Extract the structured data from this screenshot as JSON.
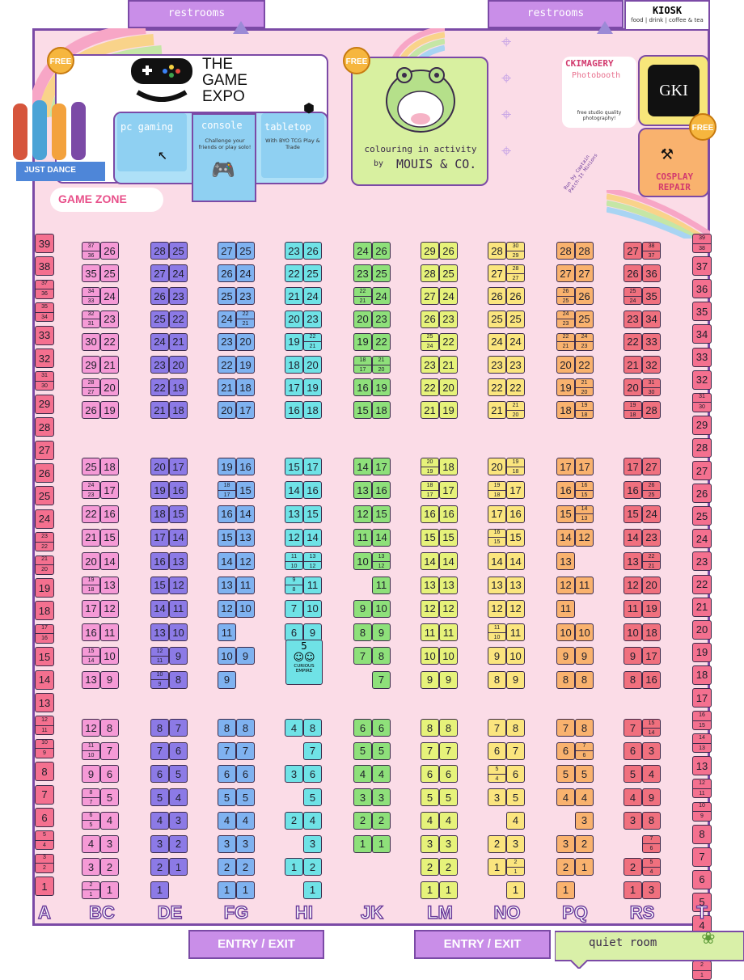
{
  "top": {
    "restrooms_left": "restrooms",
    "restrooms_right": "restrooms",
    "kiosk_title": "KIOSK",
    "kiosk_sub": "food | drink | coffee & tea"
  },
  "game_zone": {
    "title_line1": "THE",
    "title_line2": "GAME",
    "title_line3": "EXPO",
    "free": "FREE",
    "just_dance": "JUST DANCE",
    "zone": "GAME ZONE",
    "pc": "pc gaming",
    "console": "console",
    "console_desc": "Challenge your friends or play solo!",
    "tabletop": "tabletop",
    "tabletop_desc": "With BYO TCG Play & Trade"
  },
  "colouring": {
    "free": "FREE",
    "line1": "colouring in activity",
    "by": "by",
    "brand": "MOUIS & CO."
  },
  "photobooth": {
    "title": "CKIMAGERY",
    "sub": "Photobooth",
    "desc": "free studio quality photography!"
  },
  "gki": {
    "logo": "GKI"
  },
  "cosplay": {
    "free": "FREE",
    "title": "COSPLAY REPAIR",
    "run_by": "Run by Captain Patch-It Minions"
  },
  "bottom": {
    "entry_left": "ENTRY / EXIT",
    "entry_right": "ENTRY / EXIT",
    "quiet": "quiet room"
  },
  "curious": {
    "number": "5",
    "name": "CURIOUS EMPIRE"
  },
  "aisles": [
    "A",
    "BC",
    "DE",
    "FG",
    "HI",
    "JK",
    "LM",
    "NO",
    "PQ",
    "RS",
    "T"
  ],
  "colors": {
    "A": "#f4708f",
    "BC": "#f59ad6",
    "DE": "#8c7ae6",
    "FG": "#7fb2f0",
    "HI": "#6fe2e6",
    "JK": "#8ee07a",
    "LM": "#e6f27a",
    "NO": "#fbe57e",
    "PQ": "#f9b26e",
    "RS": "#f0707e",
    "T": "#f4708f"
  },
  "wall_A": [
    "39",
    "38",
    "37|36",
    "35|34",
    "33",
    "32",
    "31|30",
    "29",
    "28",
    "27",
    "26",
    "25",
    "24",
    "23|22",
    "21|20",
    "19",
    "18",
    "17|16",
    "15",
    "14",
    "13",
    "12|11",
    "10|9",
    "8",
    "7",
    "6",
    "5|4",
    "3|2",
    "1"
  ],
  "wall_T": [
    "39|38",
    "37",
    "36",
    "35",
    "34",
    "33",
    "32",
    "31|30",
    "29",
    "28",
    "27",
    "26",
    "25",
    "24",
    "23",
    "22",
    "21",
    "20",
    "19",
    "18",
    "17",
    "16|15",
    "14|13",
    "13",
    "12|11",
    "10|9",
    "8",
    "7",
    "6",
    "5",
    "4",
    "3",
    "2|1"
  ],
  "booths": {
    "BC": [
      [
        "37|36",
        "26"
      ],
      [
        "35",
        "25"
      ],
      [
        "34|33",
        "24"
      ],
      [
        "32|31",
        "23"
      ],
      [
        "30",
        "22"
      ],
      [
        "29",
        "21"
      ],
      [
        "28|27",
        "20"
      ],
      [
        "26",
        "19"
      ],
      [
        "25",
        "18"
      ],
      [
        "24|23",
        "17"
      ],
      [
        "22",
        "16"
      ],
      [
        "21",
        "15"
      ],
      [
        "20",
        "14"
      ],
      [
        "19|18",
        "13"
      ],
      [
        "17",
        "12"
      ],
      [
        "16",
        "11"
      ],
      [
        "15|14",
        "10"
      ],
      [
        "13",
        "9"
      ],
      [
        "12",
        "8"
      ],
      [
        "11|10",
        "7"
      ],
      [
        "9",
        "6"
      ],
      [
        "8|7",
        "5"
      ],
      [
        "6|5",
        "4"
      ],
      [
        "4",
        "3"
      ],
      [
        "3",
        "2"
      ],
      [
        "2|1",
        "1"
      ]
    ],
    "DE": [
      [
        "28",
        "25"
      ],
      [
        "27",
        "24"
      ],
      [
        "26",
        "23"
      ],
      [
        "25",
        "22"
      ],
      [
        "24",
        "21"
      ],
      [
        "23",
        "20"
      ],
      [
        "22",
        "19"
      ],
      [
        "21",
        "18"
      ],
      [
        "20",
        "17"
      ],
      [
        "19",
        "16"
      ],
      [
        "18",
        "15"
      ],
      [
        "17",
        "14"
      ],
      [
        "16",
        "13"
      ],
      [
        "15",
        "12"
      ],
      [
        "14",
        "11"
      ],
      [
        "13",
        "10"
      ],
      [
        "12|11",
        "9"
      ],
      [
        "10|9",
        "8"
      ],
      [
        "8",
        "7"
      ],
      [
        "7",
        "6"
      ],
      [
        "6",
        "5"
      ],
      [
        "5",
        "4"
      ],
      [
        "4",
        "3"
      ],
      [
        "3",
        "2"
      ],
      [
        "2",
        "1"
      ],
      [
        "1",
        ""
      ]
    ],
    "FG": [
      [
        "27",
        "25"
      ],
      [
        "26",
        "24"
      ],
      [
        "25",
        "23"
      ],
      [
        "24",
        "22|21"
      ],
      [
        "23",
        "20"
      ],
      [
        "22",
        "19"
      ],
      [
        "21",
        "18"
      ],
      [
        "20",
        "17"
      ],
      [
        "19",
        "16"
      ],
      [
        "18|17",
        "15"
      ],
      [
        "16",
        "14"
      ],
      [
        "15",
        "13"
      ],
      [
        "14",
        "12"
      ],
      [
        "13",
        "11"
      ],
      [
        "12",
        "10"
      ],
      [
        "11",
        ""
      ],
      [
        "10",
        "9"
      ],
      [
        "9",
        ""
      ],
      [
        "8",
        "8"
      ],
      [
        "7",
        "7"
      ],
      [
        "6",
        "6"
      ],
      [
        "5",
        "5"
      ],
      [
        "4",
        "4"
      ],
      [
        "3",
        "3"
      ],
      [
        "2",
        "2"
      ],
      [
        "1",
        "1"
      ]
    ],
    "HI": [
      [
        "23",
        "26"
      ],
      [
        "22",
        "25"
      ],
      [
        "21",
        "24"
      ],
      [
        "20",
        "23"
      ],
      [
        "19",
        "22|21"
      ],
      [
        "18",
        "20"
      ],
      [
        "17",
        "19"
      ],
      [
        "16",
        "18"
      ],
      [
        "15",
        "17"
      ],
      [
        "14",
        "16"
      ],
      [
        "13",
        "15"
      ],
      [
        "12",
        "14"
      ],
      [
        "11|10",
        "13|12"
      ],
      [
        "9|8",
        "11"
      ],
      [
        "7",
        "10"
      ],
      [
        "6",
        "9"
      ],
      [
        "",
        ""
      ],
      [
        "",
        ""
      ],
      [
        "4",
        "8"
      ],
      [
        "",
        "7"
      ],
      [
        "3",
        "6"
      ],
      [
        "",
        "5"
      ],
      [
        "2",
        "4"
      ],
      [
        "",
        "3"
      ],
      [
        "1",
        "2"
      ],
      [
        "",
        "1"
      ]
    ],
    "JK": [
      [
        "24",
        "26"
      ],
      [
        "23",
        "25"
      ],
      [
        "22|21",
        "24"
      ],
      [
        "20",
        "23"
      ],
      [
        "19",
        "22"
      ],
      [
        "18|17",
        "21|20"
      ],
      [
        "16",
        "19"
      ],
      [
        "15",
        "18"
      ],
      [
        "14",
        "17"
      ],
      [
        "13",
        "16"
      ],
      [
        "12",
        "15"
      ],
      [
        "11",
        "14"
      ],
      [
        "10",
        "13|12"
      ],
      [
        "",
        "11"
      ],
      [
        "9",
        "10"
      ],
      [
        "8",
        "9"
      ],
      [
        "7",
        "8"
      ],
      [
        "",
        "7"
      ],
      [
        "6",
        "6"
      ],
      [
        "5",
        "5"
      ],
      [
        "4",
        "4"
      ],
      [
        "3",
        "3"
      ],
      [
        "2",
        "2"
      ],
      [
        "1",
        "1"
      ],
      [
        "",
        ""
      ],
      [
        "",
        ""
      ]
    ],
    "LM": [
      [
        "29",
        "26"
      ],
      [
        "28",
        "25"
      ],
      [
        "27",
        "24"
      ],
      [
        "26",
        "23"
      ],
      [
        "25|24",
        "22"
      ],
      [
        "23",
        "21"
      ],
      [
        "22",
        "20"
      ],
      [
        "21",
        "19"
      ],
      [
        "20|19",
        "18"
      ],
      [
        "18|17",
        "17"
      ],
      [
        "16",
        "16"
      ],
      [
        "15",
        "15"
      ],
      [
        "14",
        "14"
      ],
      [
        "13",
        "13"
      ],
      [
        "12",
        "12"
      ],
      [
        "11",
        "11"
      ],
      [
        "10",
        "10"
      ],
      [
        "9",
        "9"
      ],
      [
        "8",
        "8"
      ],
      [
        "7",
        "7"
      ],
      [
        "6",
        "6"
      ],
      [
        "5",
        "5"
      ],
      [
        "4",
        "4"
      ],
      [
        "3",
        "3"
      ],
      [
        "2",
        "2"
      ],
      [
        "1",
        "1"
      ]
    ],
    "NO": [
      [
        "28",
        "30|29"
      ],
      [
        "27",
        "28|27"
      ],
      [
        "26",
        "26"
      ],
      [
        "25",
        "25"
      ],
      [
        "24",
        "24"
      ],
      [
        "23",
        "23"
      ],
      [
        "22",
        "22"
      ],
      [
        "21",
        "21|20"
      ],
      [
        "20",
        "19|18"
      ],
      [
        "19|18",
        "17"
      ],
      [
        "17",
        "16"
      ],
      [
        "16|15",
        "15"
      ],
      [
        "14",
        "14"
      ],
      [
        "13",
        "13"
      ],
      [
        "12",
        "12"
      ],
      [
        "11|10",
        "11"
      ],
      [
        "9",
        "10"
      ],
      [
        "8",
        "9"
      ],
      [
        "7",
        "8"
      ],
      [
        "6",
        "7"
      ],
      [
        "5|4",
        "6"
      ],
      [
        "3",
        "5"
      ],
      [
        "",
        "4"
      ],
      [
        "2",
        "3"
      ],
      [
        "1",
        "2|1"
      ],
      [
        "",
        "1"
      ]
    ],
    "PQ": [
      [
        "28",
        "28"
      ],
      [
        "27",
        "27"
      ],
      [
        "26|25",
        "26"
      ],
      [
        "24|23",
        "25"
      ],
      [
        "22|21",
        "24|23"
      ],
      [
        "20",
        "22"
      ],
      [
        "19",
        "21|20"
      ],
      [
        "18",
        "19|18"
      ],
      [
        "17",
        "17"
      ],
      [
        "16",
        "16|15"
      ],
      [
        "15",
        "14|13"
      ],
      [
        "14",
        "12"
      ],
      [
        "13",
        ""
      ],
      [
        "12",
        "11"
      ],
      [
        "11",
        ""
      ],
      [
        "10",
        "10"
      ],
      [
        "9",
        "9"
      ],
      [
        "8",
        "8"
      ],
      [
        "7",
        "8"
      ],
      [
        "6",
        "7|6"
      ],
      [
        "5",
        "5"
      ],
      [
        "4",
        "4"
      ],
      [
        "",
        "3"
      ],
      [
        "3",
        "2"
      ],
      [
        "2",
        "1"
      ],
      [
        "1",
        ""
      ]
    ],
    "RS": [
      [
        "27",
        "38|37"
      ],
      [
        "26",
        "36"
      ],
      [
        "25|24",
        "35"
      ],
      [
        "23",
        "34"
      ],
      [
        "22",
        "33"
      ],
      [
        "21",
        "32"
      ],
      [
        "20",
        "31|30"
      ],
      [
        "19|18",
        "28"
      ],
      [
        "17",
        "27"
      ],
      [
        "16",
        "26|25"
      ],
      [
        "15",
        "24"
      ],
      [
        "14",
        "23"
      ],
      [
        "13",
        "22|21"
      ],
      [
        "12",
        "20"
      ],
      [
        "11",
        "19"
      ],
      [
        "10",
        "18"
      ],
      [
        "9",
        "17"
      ],
      [
        "8",
        "16"
      ],
      [
        "7",
        "15|14"
      ],
      [
        "6",
        "3"
      ],
      [
        "5",
        "4"
      ],
      [
        "4",
        "9"
      ],
      [
        "3",
        "8"
      ],
      [
        "",
        "7|6"
      ],
      [
        "2",
        "5|4"
      ],
      [
        "1",
        "3"
      ]
    ]
  }
}
